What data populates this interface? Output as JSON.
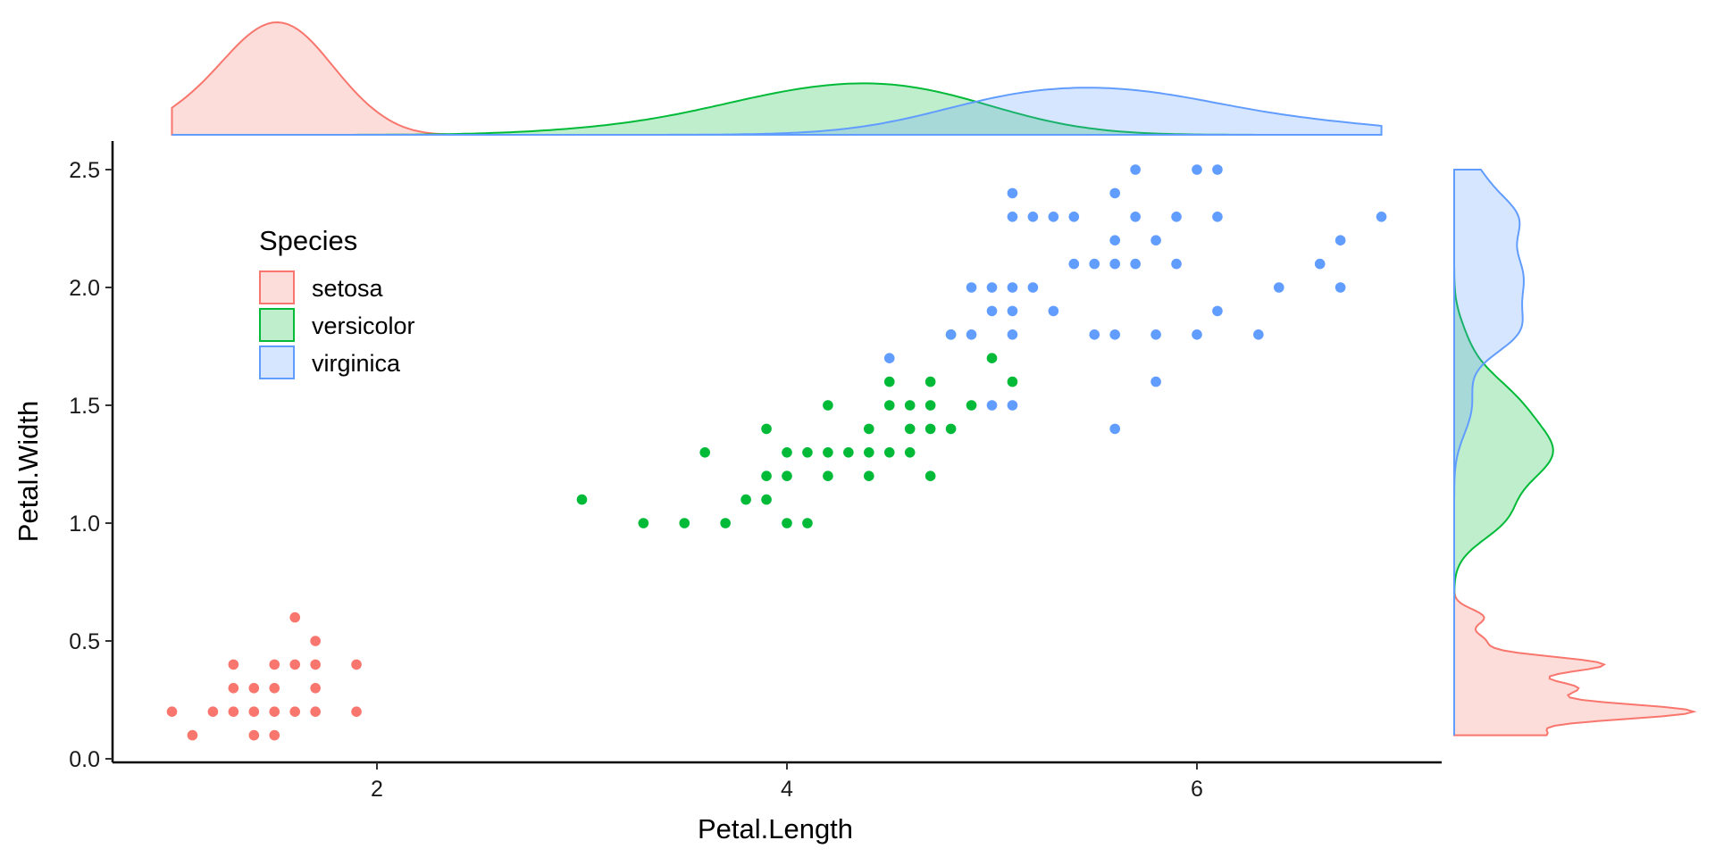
{
  "chart_data": {
    "type": "scatter",
    "xlabel": "Petal.Length",
    "ylabel": "Petal.Width",
    "xlim": [
      0.7,
      7.2
    ],
    "ylim": [
      0.0,
      2.55
    ],
    "xticks": [
      2,
      4,
      6
    ],
    "yticks": [
      0.0,
      0.5,
      1.0,
      1.5,
      2.0,
      2.5
    ],
    "xtick_labels": [
      "2",
      "4",
      "6"
    ],
    "ytick_labels": [
      "0.0",
      "0.5",
      "1.0",
      "1.5",
      "2.0",
      "2.5"
    ],
    "grid": false,
    "legend": {
      "title": "Species",
      "position": "top-left inside plot",
      "entries": [
        "setosa",
        "versicolor",
        "virginica"
      ]
    },
    "marginal_plots": "density curves on top (Petal.Length) and right (Petal.Width), one per species",
    "series": [
      {
        "name": "setosa",
        "color": "#F8766D",
        "points": [
          [
            1.0,
            0.2
          ],
          [
            1.1,
            0.1
          ],
          [
            1.2,
            0.2
          ],
          [
            1.3,
            0.2
          ],
          [
            1.3,
            0.3
          ],
          [
            1.3,
            0.4
          ],
          [
            1.4,
            0.1
          ],
          [
            1.4,
            0.2
          ],
          [
            1.4,
            0.3
          ],
          [
            1.5,
            0.1
          ],
          [
            1.5,
            0.2
          ],
          [
            1.5,
            0.3
          ],
          [
            1.5,
            0.4
          ],
          [
            1.6,
            0.2
          ],
          [
            1.6,
            0.4
          ],
          [
            1.6,
            0.6
          ],
          [
            1.7,
            0.2
          ],
          [
            1.7,
            0.3
          ],
          [
            1.7,
            0.4
          ],
          [
            1.7,
            0.5
          ],
          [
            1.9,
            0.2
          ],
          [
            1.9,
            0.4
          ]
        ]
      },
      {
        "name": "versicolor",
        "color": "#00BA38",
        "points": [
          [
            3.0,
            1.1
          ],
          [
            3.3,
            1.0
          ],
          [
            3.5,
            1.0
          ],
          [
            3.6,
            1.3
          ],
          [
            3.7,
            1.0
          ],
          [
            3.8,
            1.1
          ],
          [
            3.9,
            1.1
          ],
          [
            3.9,
            1.2
          ],
          [
            3.9,
            1.4
          ],
          [
            4.0,
            1.0
          ],
          [
            4.0,
            1.2
          ],
          [
            4.0,
            1.3
          ],
          [
            4.1,
            1.0
          ],
          [
            4.1,
            1.3
          ],
          [
            4.2,
            1.2
          ],
          [
            4.2,
            1.3
          ],
          [
            4.2,
            1.5
          ],
          [
            4.3,
            1.3
          ],
          [
            4.4,
            1.2
          ],
          [
            4.4,
            1.3
          ],
          [
            4.4,
            1.4
          ],
          [
            4.5,
            1.3
          ],
          [
            4.5,
            1.5
          ],
          [
            4.5,
            1.6
          ],
          [
            4.6,
            1.3
          ],
          [
            4.6,
            1.4
          ],
          [
            4.6,
            1.5
          ],
          [
            4.7,
            1.2
          ],
          [
            4.7,
            1.4
          ],
          [
            4.7,
            1.5
          ],
          [
            4.7,
            1.6
          ],
          [
            4.8,
            1.4
          ],
          [
            4.8,
            1.8
          ],
          [
            4.9,
            1.5
          ],
          [
            5.0,
            1.7
          ],
          [
            5.1,
            1.6
          ]
        ]
      },
      {
        "name": "virginica",
        "color": "#619CFF",
        "points": [
          [
            4.5,
            1.7
          ],
          [
            4.8,
            1.8
          ],
          [
            4.9,
            1.8
          ],
          [
            4.9,
            2.0
          ],
          [
            5.0,
            1.5
          ],
          [
            5.0,
            1.9
          ],
          [
            5.0,
            2.0
          ],
          [
            5.1,
            1.5
          ],
          [
            5.1,
            1.8
          ],
          [
            5.1,
            1.9
          ],
          [
            5.1,
            2.0
          ],
          [
            5.1,
            2.3
          ],
          [
            5.1,
            2.4
          ],
          [
            5.2,
            2.0
          ],
          [
            5.2,
            2.3
          ],
          [
            5.3,
            1.9
          ],
          [
            5.3,
            2.3
          ],
          [
            5.4,
            2.1
          ],
          [
            5.4,
            2.3
          ],
          [
            5.5,
            1.8
          ],
          [
            5.5,
            2.1
          ],
          [
            5.6,
            1.4
          ],
          [
            5.6,
            1.8
          ],
          [
            5.6,
            2.1
          ],
          [
            5.6,
            2.2
          ],
          [
            5.6,
            2.4
          ],
          [
            5.7,
            2.1
          ],
          [
            5.7,
            2.3
          ],
          [
            5.7,
            2.5
          ],
          [
            5.8,
            1.6
          ],
          [
            5.8,
            1.8
          ],
          [
            5.8,
            2.2
          ],
          [
            5.9,
            2.1
          ],
          [
            5.9,
            2.3
          ],
          [
            6.0,
            1.8
          ],
          [
            6.0,
            2.5
          ],
          [
            6.1,
            1.9
          ],
          [
            6.1,
            2.3
          ],
          [
            6.1,
            2.5
          ],
          [
            6.3,
            1.8
          ],
          [
            6.4,
            2.0
          ],
          [
            6.6,
            2.1
          ],
          [
            6.7,
            2.0
          ],
          [
            6.7,
            2.2
          ],
          [
            6.9,
            2.3
          ]
        ]
      }
    ]
  }
}
